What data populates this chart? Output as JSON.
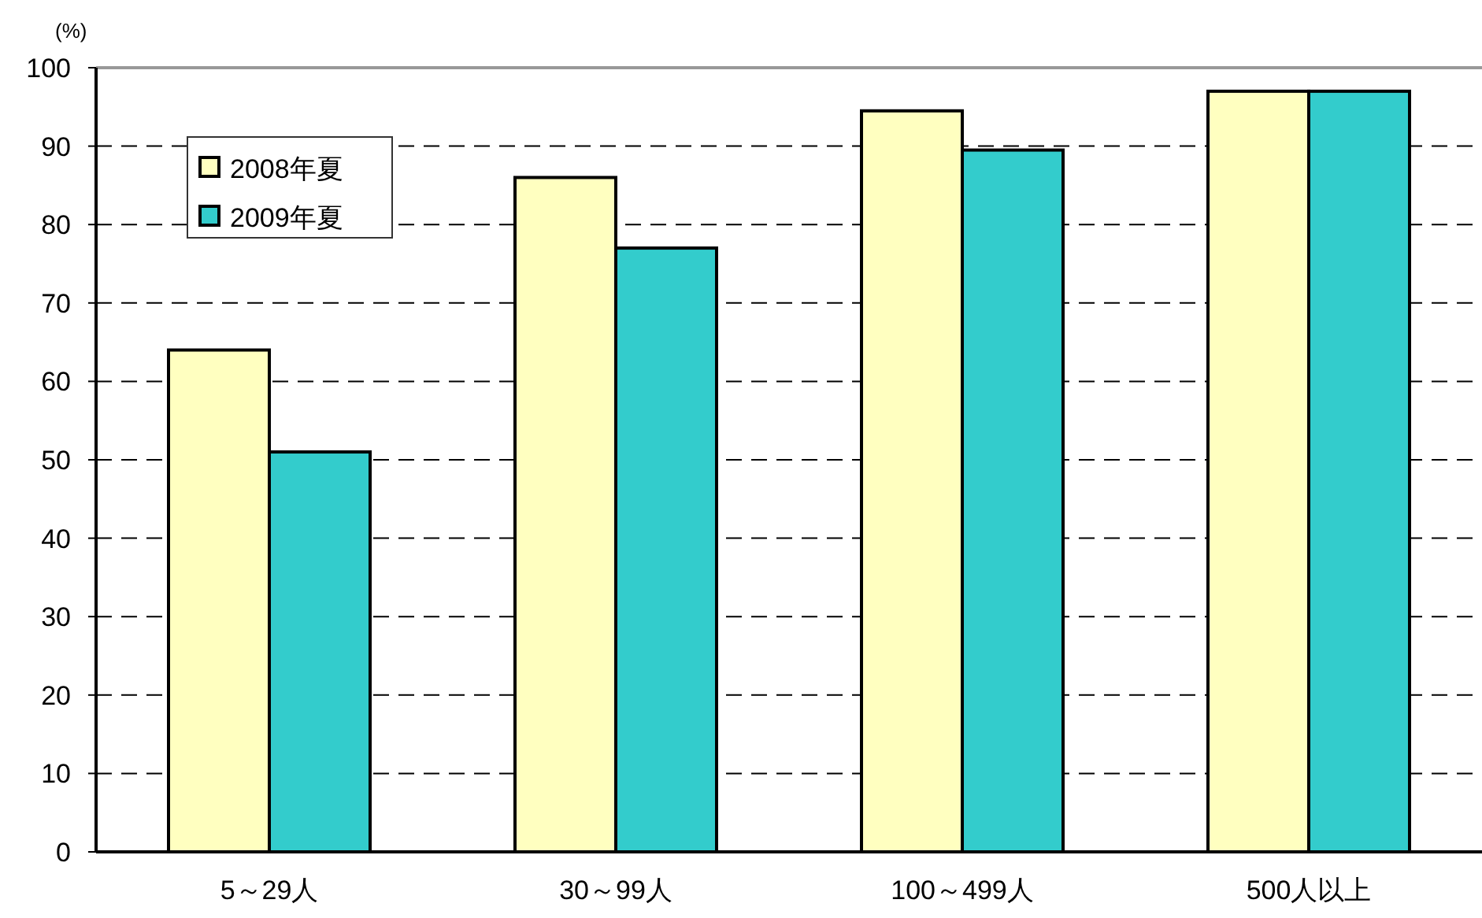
{
  "chart_data": {
    "type": "bar",
    "ylabel": "(%)",
    "categories": [
      "5～29人",
      "30～99人",
      "100～499人",
      "500人以上"
    ],
    "series": [
      {
        "name": "2008年夏",
        "color": "#ffffc0",
        "values": [
          64,
          86,
          94.5,
          97
        ]
      },
      {
        "name": "2009年夏",
        "color": "#33cccc",
        "values": [
          51,
          77,
          89.5,
          97
        ]
      }
    ],
    "ylim": [
      0,
      100
    ],
    "yticks": [
      0,
      10,
      20,
      30,
      40,
      50,
      60,
      70,
      80,
      90,
      100
    ],
    "grid": "y",
    "legend": "top left"
  }
}
